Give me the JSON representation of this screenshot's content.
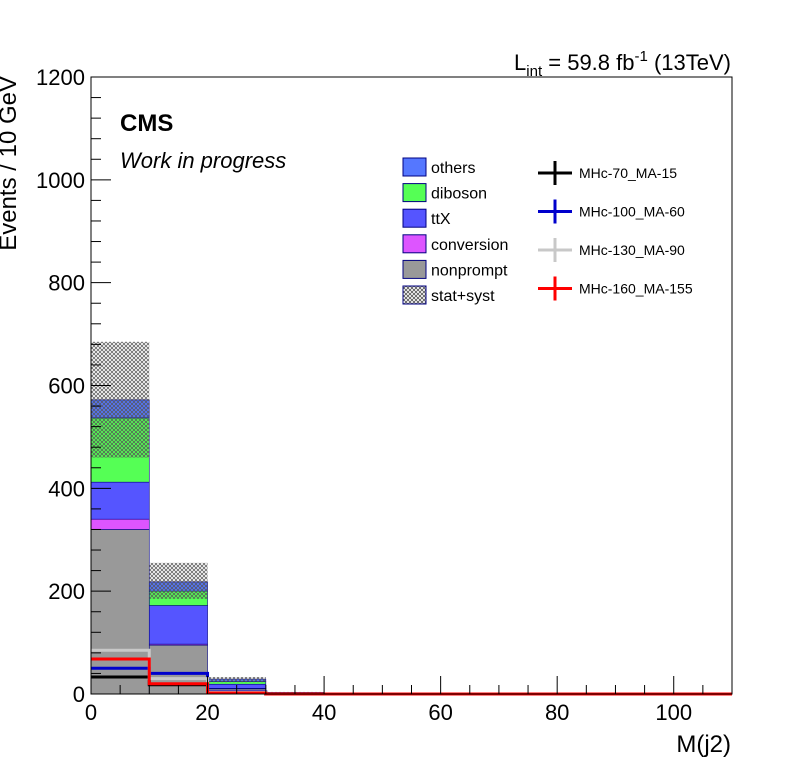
{
  "chart_data": {
    "type": "bar",
    "stacked": true,
    "xlabel": "M(j2)",
    "ylabel": "Events / 10 GeV",
    "xlim": [
      0,
      110
    ],
    "ylim": [
      0,
      1200
    ],
    "x_ticks": [
      0,
      20,
      40,
      60,
      80,
      100
    ],
    "y_ticks": [
      0,
      200,
      400,
      600,
      800,
      1000,
      1200
    ],
    "bin_edges": [
      0,
      10,
      20,
      30,
      40,
      50,
      60,
      70,
      80,
      90,
      100,
      110
    ],
    "lumi_label": {
      "prefix": "L",
      "sub": "int",
      "mid": " = 59.8 fb",
      "sup": "-1",
      "suffix": " (13TeV)"
    },
    "cms_label": "CMS",
    "cms_sublabel": "Work in progress",
    "stack": [
      {
        "name": "nonprompt",
        "color": "#999999",
        "values": [
          320,
          95,
          10,
          0,
          0,
          0,
          0,
          0,
          0,
          0,
          0
        ]
      },
      {
        "name": "conversion",
        "color": "#dd55ff",
        "values": [
          20,
          2,
          1,
          0,
          0,
          0,
          0,
          0,
          0,
          0,
          0
        ]
      },
      {
        "name": "ttX",
        "color": "#5555ff",
        "values": [
          72,
          75,
          8,
          1,
          0,
          0,
          0,
          0,
          0,
          0,
          0
        ]
      },
      {
        "name": "diboson",
        "color": "#55ff55",
        "values": [
          125,
          28,
          5,
          1,
          0,
          0,
          0,
          0,
          0,
          0,
          0
        ]
      },
      {
        "name": "others",
        "color": "#5577ff",
        "values": [
          35,
          18,
          5,
          1,
          0,
          0,
          0,
          0,
          0,
          0,
          0
        ]
      }
    ],
    "uncertainty": {
      "name": "stat+syst",
      "lower": [
        460,
        185,
        23,
        2,
        0,
        0,
        0,
        0,
        0,
        0,
        0
      ],
      "upper": [
        685,
        255,
        33,
        4,
        0,
        0,
        0,
        0,
        0,
        0,
        0
      ]
    },
    "signals": [
      {
        "name": "MHc-70_MA-15",
        "color": "#000000",
        "values": [
          33,
          18,
          2,
          0,
          0,
          0,
          0,
          0,
          0,
          0,
          0
        ]
      },
      {
        "name": "MHc-100_MA-60",
        "color": "#0000cc",
        "values": [
          50,
          40,
          4,
          0,
          0,
          0,
          0,
          0,
          0,
          0,
          0
        ]
      },
      {
        "name": "MHc-130_MA-90",
        "color": "#c8c8c8",
        "values": [
          85,
          30,
          3,
          0,
          0,
          0,
          0,
          0,
          0,
          0,
          0
        ]
      },
      {
        "name": "MHc-160_MA-155",
        "color": "#ff0000",
        "values": [
          68,
          20,
          2,
          0,
          0,
          0,
          0,
          0,
          0,
          0,
          0
        ]
      }
    ],
    "legend_placement": "top-right",
    "legend_order": [
      "others",
      "diboson",
      "ttX",
      "conversion",
      "nonprompt",
      "stat+syst"
    ],
    "grid": false
  }
}
